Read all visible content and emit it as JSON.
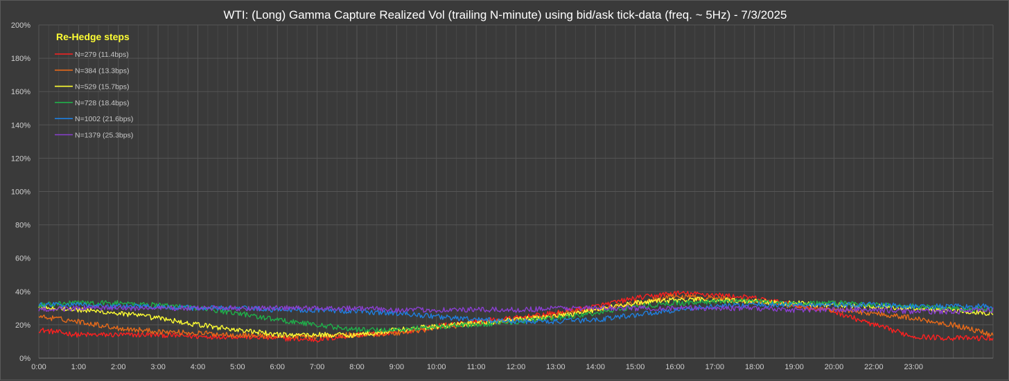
{
  "chart_data": {
    "type": "line",
    "title": "WTI: (Long) Gamma Capture Realized Vol (trailing N-minute) using bid/ask tick-data (freq. ~ 5Hz) - 7/3/2025",
    "xlabel": "",
    "ylabel": "",
    "legend_title": "Re-Hedge steps",
    "legend_position": "top-left",
    "grid": true,
    "ylim": [
      0,
      200
    ],
    "yticks": [
      0,
      20,
      40,
      60,
      80,
      100,
      120,
      140,
      160,
      180,
      200
    ],
    "ytick_labels": [
      "0%",
      "20%",
      "40%",
      "60%",
      "80%",
      "100%",
      "120%",
      "140%",
      "160%",
      "180%",
      "200%"
    ],
    "xlim": [
      0,
      24
    ],
    "xtick_labels": [
      "0:00",
      "1:00",
      "2:00",
      "3:00",
      "4:00",
      "5:00",
      "6:00",
      "7:00",
      "8:00",
      "9:00",
      "10:00",
      "11:00",
      "12:00",
      "13:00",
      "14:00",
      "15:00",
      "16:00",
      "17:00",
      "18:00",
      "19:00",
      "20:00",
      "22:00",
      "23:00"
    ],
    "x_hours": [
      0,
      1,
      2,
      3,
      4,
      5,
      6,
      7,
      8,
      9,
      10,
      11,
      12,
      13,
      14,
      15,
      16,
      17,
      18,
      19,
      20,
      21,
      22,
      23,
      24
    ],
    "series": [
      {
        "name": "N=279 (11.4bps)",
        "color": "#ff2020",
        "values": [
          17,
          14,
          14,
          14,
          13,
          13,
          12,
          11,
          14,
          15,
          19,
          22,
          24,
          27,
          31,
          36,
          39,
          38,
          36,
          32,
          28,
          20,
          13,
          12,
          12
        ]
      },
      {
        "name": "N=384 (13.3bps)",
        "color": "#e86a1a",
        "values": [
          25,
          22,
          18,
          16,
          15,
          14,
          13,
          13,
          14,
          15,
          18,
          21,
          23,
          26,
          29,
          33,
          37,
          36,
          34,
          31,
          29,
          27,
          24,
          20,
          14
        ]
      },
      {
        "name": "N=529 (15.7bps)",
        "color": "#ffff33",
        "values": [
          31,
          29,
          27,
          24,
          20,
          17,
          14,
          14,
          14,
          17,
          19,
          21,
          23,
          25,
          29,
          33,
          35,
          35,
          34,
          33,
          32,
          31,
          30,
          29,
          27
        ]
      },
      {
        "name": "N=728 (18.4bps)",
        "color": "#1fb04a",
        "values": [
          32,
          33,
          33,
          32,
          30,
          27,
          23,
          20,
          17,
          17,
          19,
          20,
          22,
          24,
          27,
          31,
          33,
          34,
          34,
          33,
          33,
          32,
          31,
          30,
          29
        ]
      },
      {
        "name": "N=1002 (21.6bps)",
        "color": "#1f7fe0",
        "values": [
          32,
          32,
          31,
          31,
          30,
          30,
          29,
          29,
          28,
          27,
          25,
          23,
          22,
          22,
          23,
          26,
          29,
          31,
          32,
          32,
          32,
          32,
          31,
          31,
          31
        ]
      },
      {
        "name": "N=1379 (25.3bps)",
        "color": "#8a3fd0",
        "values": [
          29,
          30,
          30,
          30,
          30,
          30,
          30,
          30,
          30,
          29,
          29,
          29,
          29,
          30,
          30,
          30,
          30,
          30,
          30,
          29,
          29,
          29,
          28,
          28,
          29
        ]
      }
    ]
  }
}
